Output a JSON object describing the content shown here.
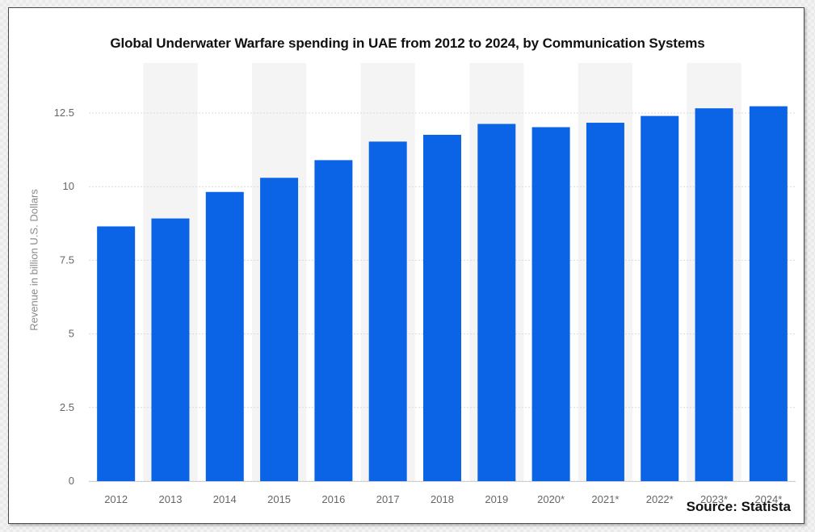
{
  "chart_data": {
    "type": "bar",
    "title": "Global Underwater Warfare spending in UAE from 2012 to 2024, by Communication Systems",
    "ylabel": "Revenue in billion U.S. Dollars",
    "xlabel": "",
    "categories": [
      "2012",
      "2013",
      "2014",
      "2015",
      "2016",
      "2017",
      "2018",
      "2019",
      "2020*",
      "2021*",
      "2022*",
      "2023*",
      "2024*"
    ],
    "values": [
      8.65,
      8.92,
      9.82,
      10.3,
      10.9,
      11.53,
      11.76,
      12.13,
      12.02,
      12.17,
      12.4,
      12.66,
      12.73
    ],
    "ylim": [
      0,
      12.5
    ],
    "yticks": [
      "0",
      "2.5",
      "5",
      "7.5",
      "10",
      "12.5"
    ],
    "grid": true,
    "bar_color": "#0b63e5"
  },
  "source_text": "Source: Statista"
}
